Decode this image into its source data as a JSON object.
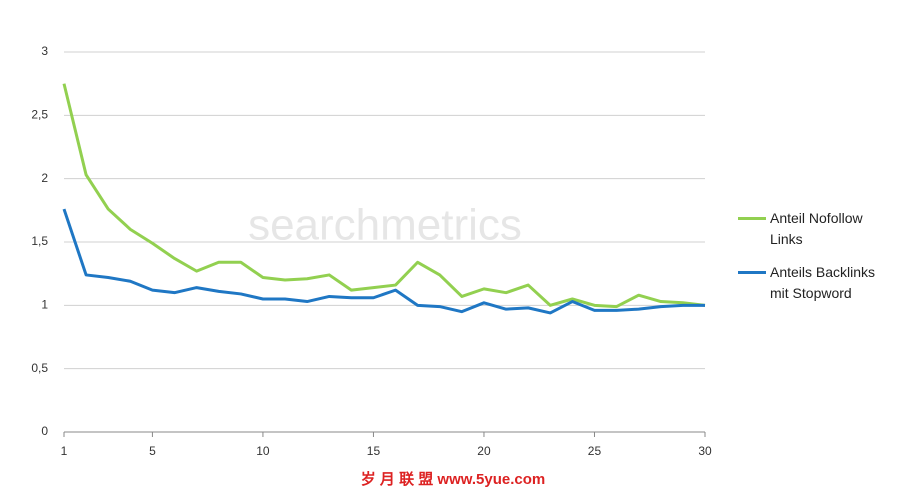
{
  "chart_data": {
    "type": "line",
    "watermark": "searchmetrics",
    "footer": "岁 月 联 盟  www.5yue.com",
    "x": [
      1,
      2,
      3,
      4,
      5,
      6,
      7,
      8,
      9,
      10,
      11,
      12,
      13,
      14,
      15,
      16,
      17,
      18,
      19,
      20,
      21,
      22,
      23,
      24,
      25,
      26,
      27,
      28,
      29,
      30
    ],
    "series": [
      {
        "name": "Anteil Nofollow Links",
        "color": "#92d050",
        "values": [
          2.75,
          2.03,
          1.76,
          1.6,
          1.49,
          1.37,
          1.27,
          1.34,
          1.34,
          1.22,
          1.2,
          1.21,
          1.24,
          1.12,
          1.14,
          1.16,
          1.34,
          1.24,
          1.07,
          1.13,
          1.1,
          1.16,
          1.0,
          1.05,
          1.0,
          0.99,
          1.08,
          1.03,
          1.02,
          1.0
        ]
      },
      {
        "name": "Anteils Backlinks mit Stopword",
        "color": "#1f77c4",
        "values": [
          1.76,
          1.24,
          1.22,
          1.19,
          1.12,
          1.1,
          1.14,
          1.11,
          1.09,
          1.05,
          1.05,
          1.03,
          1.07,
          1.06,
          1.06,
          1.12,
          1.0,
          0.99,
          0.95,
          1.02,
          0.97,
          0.98,
          0.94,
          1.03,
          0.96,
          0.96,
          0.97,
          0.99,
          1.0,
          1.0
        ]
      }
    ],
    "xlim": [
      1,
      30
    ],
    "xticks": [
      1,
      5,
      10,
      15,
      20,
      25,
      30
    ],
    "ylim": [
      0,
      3
    ],
    "yticks": [
      0,
      {
        "value": 0.5,
        "label": "0,5"
      },
      1,
      {
        "value": 1.5,
        "label": "1,5"
      },
      2,
      {
        "value": 2.5,
        "label": "2,5"
      },
      3
    ],
    "grid": true,
    "legend": "right"
  }
}
